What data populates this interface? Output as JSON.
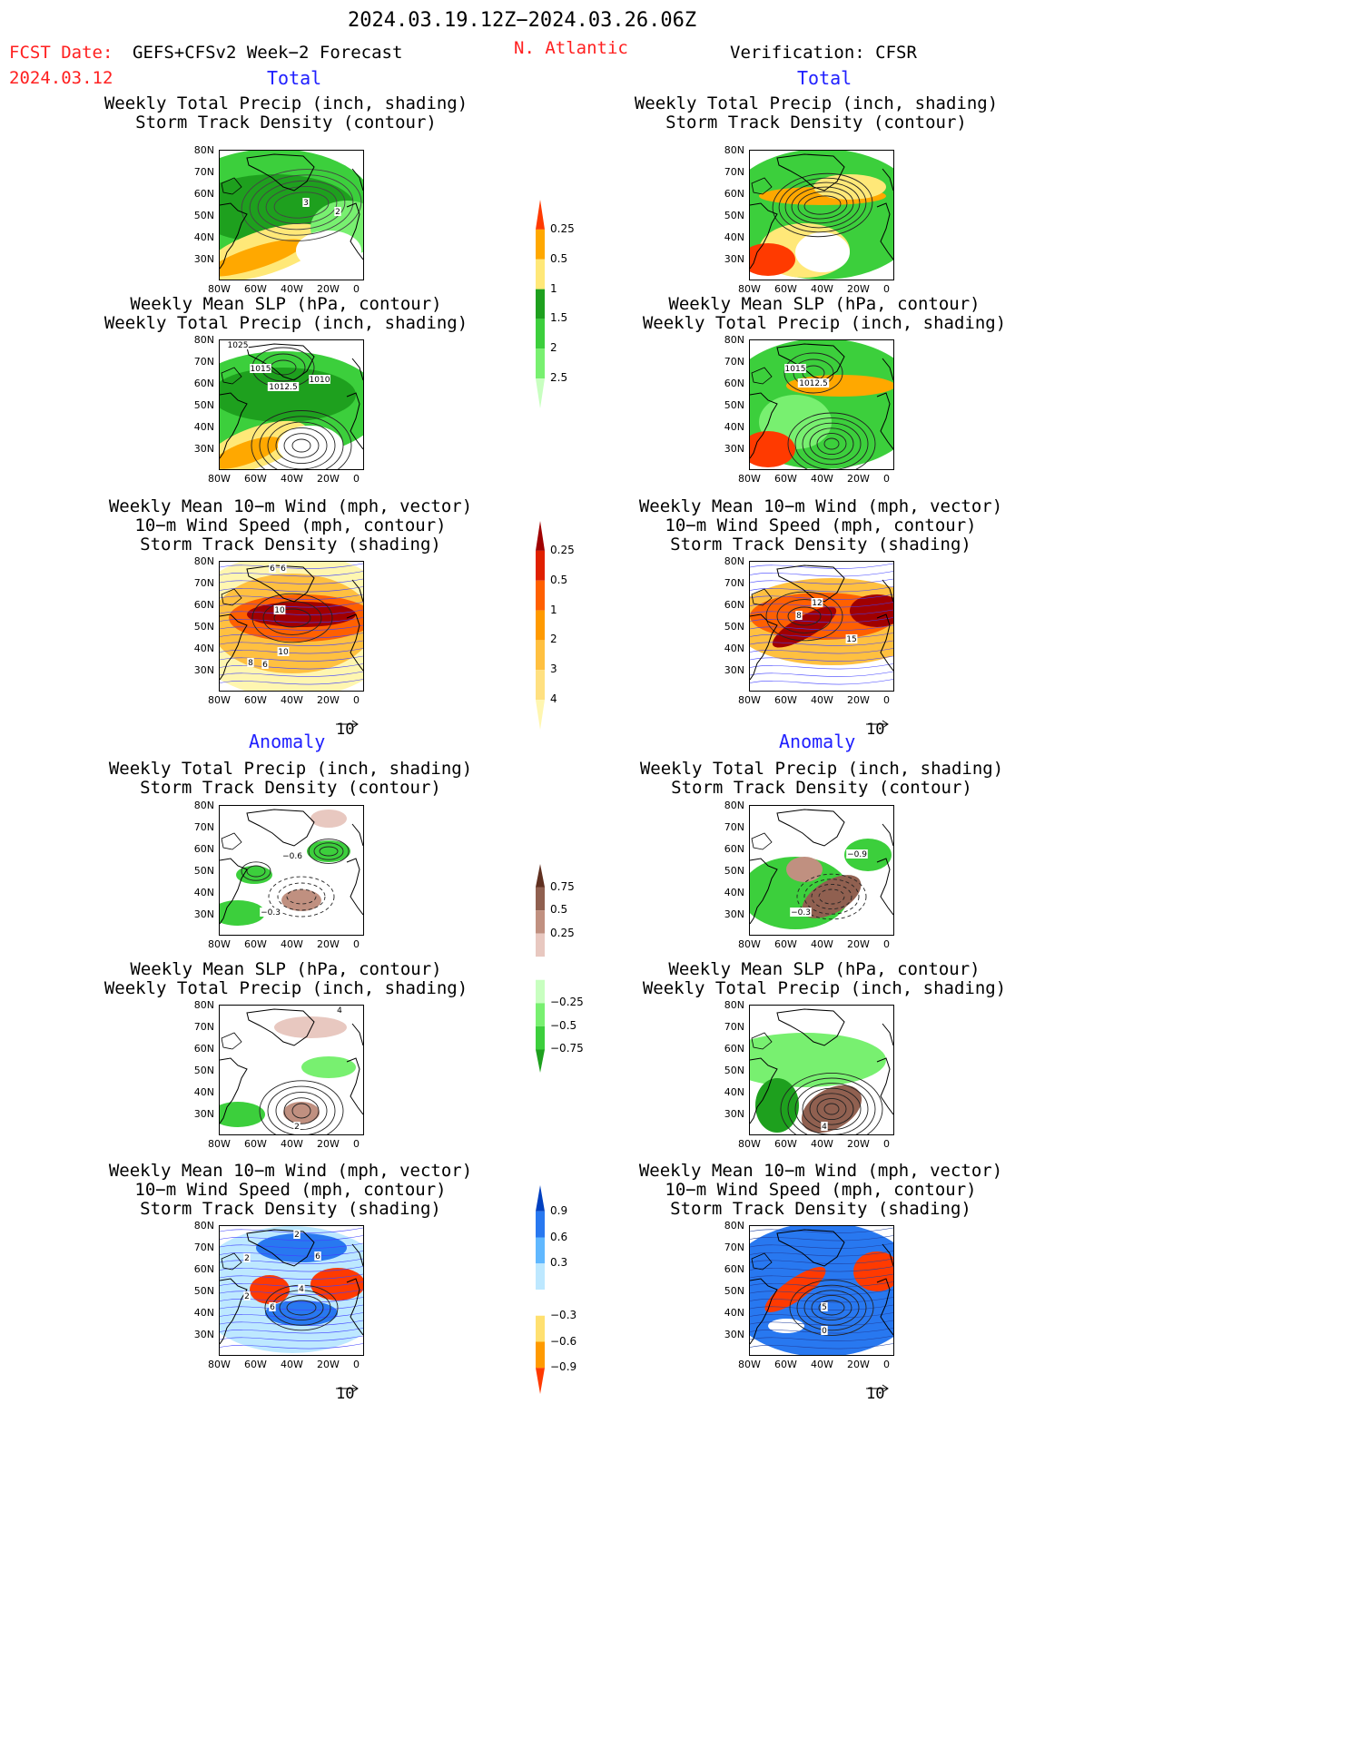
{
  "header": {
    "date_range": "2024.03.19.12Z−2024.03.26.06Z",
    "fcst_label": "FCST Date:",
    "fcst_model": "GEFS+CFSv2 Week−2 Forecast",
    "fcst_date": "2024.03.12",
    "region": "N. Atlantic",
    "verification": "Verification: CFSR"
  },
  "sections": {
    "total": "Total",
    "anomaly": "Anomaly"
  },
  "panel_titles": {
    "precip_track": "Weekly Total Precip (inch, shading)\nStorm Track Density (contour)",
    "slp_precip": "Weekly Mean SLP (hPa, contour)\nWeekly Total Precip (inch, shading)",
    "wind_track": "Weekly Mean 10−m Wind (mph, vector)\n10−m Wind Speed (mph, contour)\nStorm Track Density (shading)"
  },
  "axes": {
    "lat_labels": [
      "80N",
      "70N",
      "60N",
      "50N",
      "40N",
      "30N"
    ],
    "lon_labels": [
      "80W",
      "60W",
      "40W",
      "20W",
      "0"
    ]
  },
  "vector_ref": "10",
  "colorbars": {
    "total_precip": {
      "levels": [
        "0.25",
        "0.5",
        "1",
        "1.5",
        "2",
        "2.5"
      ],
      "colors": [
        "#c8ffc0",
        "#78f070",
        "#3ccf3c",
        "#1ea01e",
        "#ffe878",
        "#ffa800",
        "#ff3a00"
      ]
    },
    "total_track": {
      "levels": [
        "0.25",
        "0.5",
        "1",
        "2",
        "3",
        "4"
      ],
      "colors": [
        "#fff6b0",
        "#ffe080",
        "#ffc040",
        "#ff9a00",
        "#ff6000",
        "#e02000",
        "#a00000"
      ]
    },
    "anom_precip": {
      "levels": [
        "0.75",
        "0.5",
        "0.25",
        "−0.25",
        "−0.5",
        "−0.75"
      ],
      "colors": [
        "#1ea01e",
        "#3ccf3c",
        "#78f070",
        "#c8ffc0",
        "#ffffff",
        "#e8c8c0",
        "#c09080",
        "#906050",
        "#603020"
      ]
    },
    "anom_track": {
      "levels": [
        "0.9",
        "0.6",
        "0.3",
        "−0.3",
        "−0.6",
        "−0.9"
      ],
      "colors": [
        "#ff3a00",
        "#ff9a00",
        "#ffe070",
        "#ffffff",
        "#bde8ff",
        "#60b8ff",
        "#2878f0",
        "#0040c0"
      ]
    }
  },
  "map_labels": {
    "f_total_track": [
      "3",
      "2"
    ],
    "f_total_slp": [
      "1025",
      "1015",
      "1012.5",
      "1010"
    ],
    "f_total_wind": [
      "6",
      "6",
      "10",
      "10",
      "8",
      "6"
    ],
    "v_total_slp": [
      "1015",
      "1012.5"
    ],
    "v_total_wind": [
      "12",
      "8",
      "15"
    ],
    "f_anom_track": [
      "−0.6",
      "−0.3"
    ],
    "v_anom_track": [
      "−0.9",
      "−0.3"
    ],
    "f_anom_slp": [
      "4",
      "2"
    ],
    "v_anom_slp": [
      "4"
    ],
    "f_anom_wind": [
      "2",
      "2",
      "6",
      "2",
      "4",
      "6"
    ],
    "v_anom_wind": [
      "5",
      "0"
    ]
  }
}
